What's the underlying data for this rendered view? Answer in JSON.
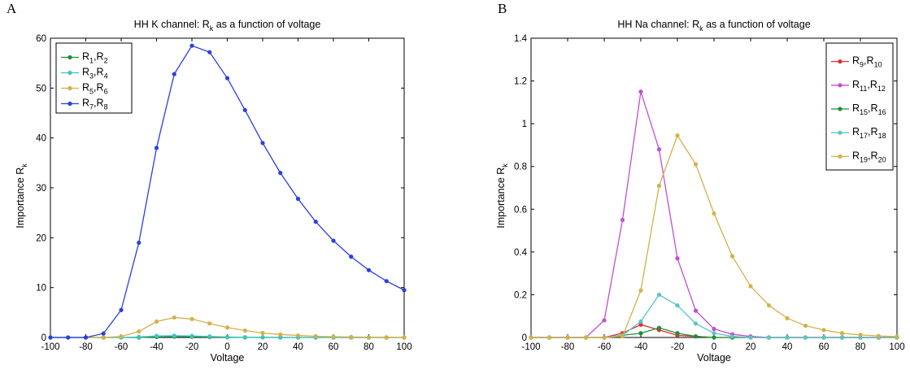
{
  "chart_data": [
    {
      "panel_label": "A",
      "type": "line",
      "title": "HH K channel: ",
      "title_sym": "R",
      "title_sub": "k",
      "title_tail": " as a function of voltage",
      "xlabel": "Voltage",
      "ylabel": "Importance R",
      "ylabel_sub": "k",
      "xlim": [
        -100,
        100
      ],
      "ylim": [
        0,
        60
      ],
      "xticks": [
        -100,
        -80,
        -60,
        -40,
        -20,
        0,
        20,
        40,
        60,
        80,
        100
      ],
      "yticks": [
        0,
        10,
        20,
        30,
        40,
        50,
        60
      ],
      "ytick_labels": [
        "0",
        "10",
        "20",
        "30",
        "40",
        "50",
        "60"
      ],
      "legend_position": "top-left",
      "x": [
        -100,
        -90,
        -80,
        -70,
        -60,
        -50,
        -40,
        -30,
        -20,
        -10,
        0,
        10,
        20,
        30,
        40,
        50,
        60,
        70,
        80,
        90,
        100
      ],
      "series": [
        {
          "label_a": "R",
          "sub_a": "1",
          "label_b": "R",
          "sub_b": "2",
          "color": "#1f8f3a",
          "values": [
            0,
            0,
            0,
            0,
            0,
            0,
            0.1,
            0.15,
            0.15,
            0.1,
            0.05,
            0.02,
            0.01,
            0,
            0,
            0,
            0,
            0,
            0,
            0,
            0
          ]
        },
        {
          "label_a": "R",
          "sub_a": "3",
          "label_b": "R",
          "sub_b": "4",
          "color": "#3cc4c4",
          "values": [
            0,
            0,
            0,
            0,
            0,
            0.1,
            0.3,
            0.35,
            0.3,
            0.2,
            0.1,
            0.05,
            0.02,
            0.01,
            0,
            0,
            0,
            0,
            0,
            0,
            0
          ]
        },
        {
          "label_a": "R",
          "sub_a": "5",
          "label_b": "R",
          "sub_b": "6",
          "color": "#d4b04a",
          "values": [
            0,
            0,
            0,
            0,
            0.2,
            1.2,
            3.2,
            4.0,
            3.7,
            2.8,
            2.0,
            1.4,
            0.9,
            0.6,
            0.4,
            0.25,
            0.15,
            0.1,
            0.05,
            0.03,
            0.02
          ]
        },
        {
          "label_a": "R",
          "sub_a": "7",
          "label_b": "R",
          "sub_b": "8",
          "color": "#2b3fe0",
          "values": [
            0,
            0,
            0,
            0.8,
            5.5,
            19,
            38,
            52.8,
            58.5,
            57.2,
            52,
            45.6,
            39,
            33,
            27.8,
            23.2,
            19.4,
            16.2,
            13.5,
            11.3,
            9.5
          ]
        }
      ]
    },
    {
      "panel_label": "B",
      "type": "line",
      "title": "HH Na channel: ",
      "title_sym": "R",
      "title_sub": "k",
      "title_tail": " as a function of voltage",
      "xlabel": "Voltage",
      "ylabel": "Importance R",
      "ylabel_sub": "k",
      "xlim": [
        -100,
        100
      ],
      "ylim": [
        0,
        1.4
      ],
      "xticks": [
        -100,
        -80,
        -60,
        -40,
        -20,
        0,
        20,
        40,
        60,
        80,
        100
      ],
      "yticks": [
        0,
        0.2,
        0.4,
        0.6,
        0.8,
        1,
        1.2,
        1.4
      ],
      "ytick_labels": [
        "0",
        "0.2",
        "0.4",
        "0.6",
        "0.8",
        "1",
        "1.2",
        "1.4"
      ],
      "legend_position": "top-right",
      "x": [
        -100,
        -90,
        -80,
        -70,
        -60,
        -50,
        -40,
        -30,
        -20,
        -10,
        0,
        10,
        20,
        30,
        40,
        50,
        60,
        70,
        80,
        90,
        100
      ],
      "series": [
        {
          "label_a": "R",
          "sub_a": "9",
          "label_b": "R",
          "sub_b": "10",
          "color": "#e03030",
          "values": [
            0,
            0,
            0,
            0,
            0,
            0.02,
            0.06,
            0.035,
            0.01,
            0.005,
            0,
            0,
            0,
            0,
            0,
            0,
            0,
            0,
            0,
            0,
            0
          ]
        },
        {
          "label_a": "R",
          "sub_a": "11",
          "label_b": "R",
          "sub_b": "12",
          "color": "#c050d0",
          "values": [
            0,
            0,
            0,
            0,
            0.08,
            0.55,
            1.15,
            0.88,
            0.37,
            0.125,
            0.04,
            0.015,
            0.005,
            0,
            0,
            0,
            0,
            0,
            0,
            0,
            0
          ]
        },
        {
          "label_a": "R",
          "sub_a": "15",
          "label_b": "R",
          "sub_b": "16",
          "color": "#1f8f3a",
          "values": [
            0,
            0,
            0,
            0,
            0,
            0.01,
            0.02,
            0.045,
            0.02,
            0.005,
            0,
            0,
            0,
            0,
            0,
            0,
            0,
            0,
            0,
            0,
            0
          ]
        },
        {
          "label_a": "R",
          "sub_a": "17",
          "label_b": "R",
          "sub_b": "18",
          "color": "#5cc4c4",
          "values": [
            0,
            0,
            0,
            0,
            0,
            0.01,
            0.075,
            0.2,
            0.15,
            0.065,
            0.02,
            0.005,
            0,
            0,
            0,
            0,
            0,
            0,
            0,
            0,
            0
          ]
        },
        {
          "label_a": "R",
          "sub_a": "19",
          "label_b": "R",
          "sub_b": "20",
          "color": "#d4b04a",
          "values": [
            0,
            0,
            0,
            0,
            0,
            0.005,
            0.22,
            0.71,
            0.945,
            0.81,
            0.58,
            0.38,
            0.24,
            0.15,
            0.09,
            0.055,
            0.035,
            0.02,
            0.012,
            0.007,
            0.004
          ]
        }
      ]
    }
  ]
}
